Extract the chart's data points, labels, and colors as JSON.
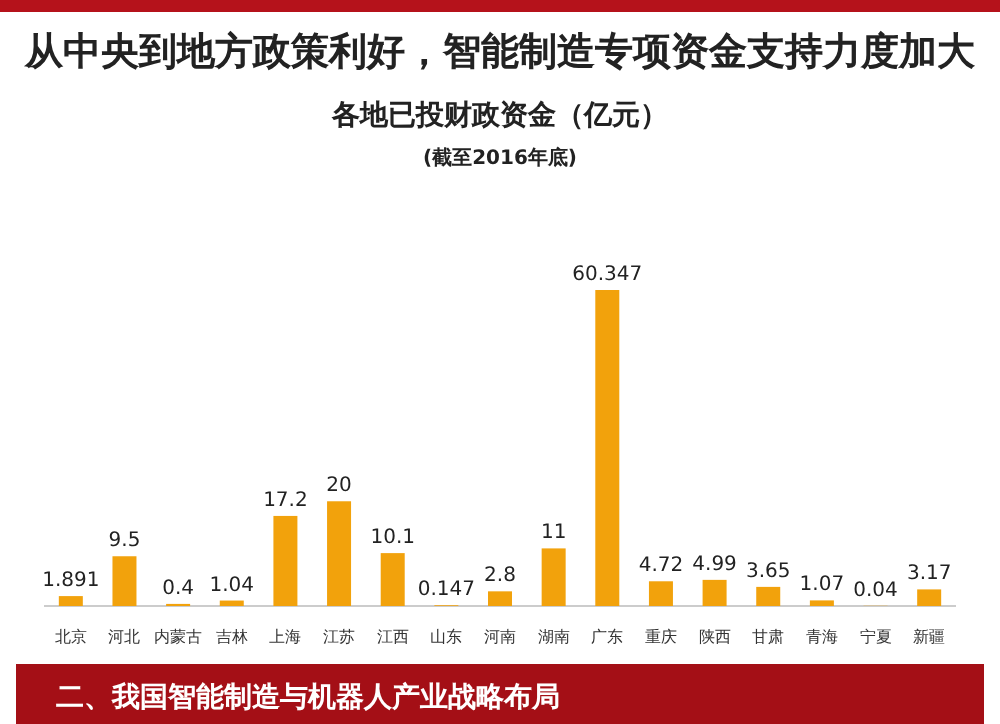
{
  "chart_data": {
    "type": "bar",
    "title": "从中央到地方政策利好，智能制造专项资金支持力度加大",
    "subtitle": "各地已投财政资金（亿元）",
    "annotations": [
      "(截至2016年底)",
      "二、我国智能制造与机器人产业战略布局"
    ],
    "categories": [
      "北京",
      "河北",
      "内蒙古",
      "吉林",
      "上海",
      "江苏",
      "江西",
      "山东",
      "河南",
      "湖南",
      "广东",
      "重庆",
      "陕西",
      "甘肃",
      "青海",
      "宁夏",
      "新疆"
    ],
    "values": [
      1.891,
      9.5,
      0.4,
      1.04,
      17.2,
      20,
      10.1,
      0.147,
      2.8,
      11,
      60.347,
      4.72,
      4.99,
      3.65,
      1.07,
      0.04,
      3.17
    ],
    "color": "#f2a20c",
    "data_labels": true
  }
}
